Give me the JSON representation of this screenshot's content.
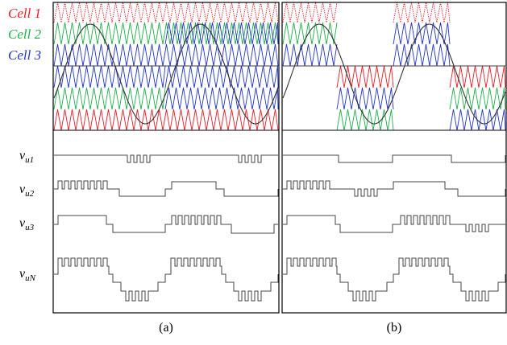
{
  "legend": [
    {
      "label": "Cell 1",
      "color": "#e8202a"
    },
    {
      "label": "Cell 2",
      "color": "#22b14c"
    },
    {
      "label": "Cell 3",
      "color": "#2437c8"
    }
  ],
  "waveform_labels": [
    {
      "base": "v",
      "sub": "u1"
    },
    {
      "base": "v",
      "sub": "u2"
    },
    {
      "base": "v",
      "sub": "u3"
    },
    {
      "base": "v",
      "sub": "uN"
    }
  ],
  "captions": {
    "left": "(a)",
    "right": "(b)"
  },
  "colors": {
    "reference": "#333333",
    "axis": "#444444",
    "frame": "#000000"
  }
}
